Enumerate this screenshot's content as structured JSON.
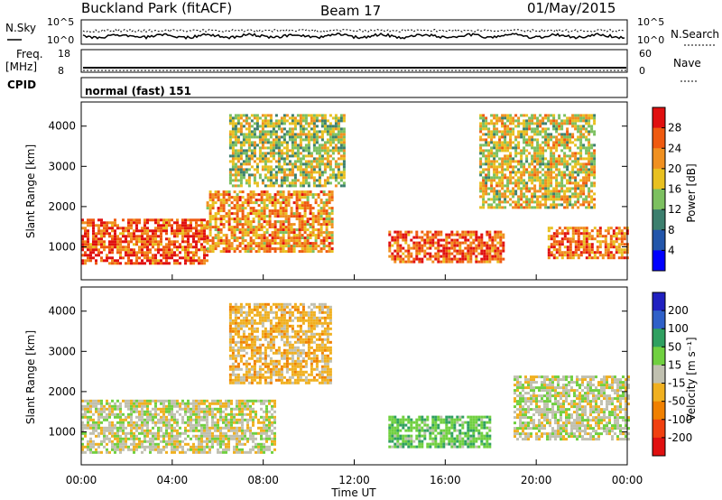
{
  "header": {
    "station": "Buckland Park (fitACF)",
    "beam": "Beam 17",
    "date": "01/May/2015"
  },
  "noise_panel": {
    "left_label": "N.Sky",
    "right_label": "N.Search",
    "left_ticks": [
      "10^5",
      "10^0"
    ],
    "right_ticks": [
      "10^5",
      "10^0"
    ]
  },
  "freq_panel": {
    "left_label_1": "Freq.",
    "left_label_2": "[MHz]",
    "left_ticks": [
      "18",
      "8"
    ],
    "right_label": "Nave",
    "right_ticks": [
      "60",
      "0"
    ]
  },
  "cpid_panel": {
    "label": "CPID",
    "program": "normal (fast) 151"
  },
  "power_panel": {
    "ylabel": "Slant Range [km]",
    "yticks": [
      "1000",
      "2000",
      "3000",
      "4000"
    ],
    "cbar_label": "Power [dB]",
    "cbar_ticks": [
      "4",
      "8",
      "12",
      "16",
      "20",
      "24",
      "28"
    ],
    "cbar_colors": [
      "#0000ff",
      "#2255aa",
      "#3c7f6e",
      "#7cc060",
      "#e8c020",
      "#f09020",
      "#ef5a10",
      "#e01010"
    ]
  },
  "velocity_panel": {
    "ylabel": "Slant Range [km]",
    "yticks": [
      "1000",
      "2000",
      "3000",
      "4000"
    ],
    "cbar_label": "Velocity [m s⁻¹]",
    "cbar_ticks": [
      "200",
      "100",
      "50",
      "15",
      "-15",
      "-50",
      "-100",
      "-200"
    ],
    "cbar_colors": [
      "#2020c0",
      "#2f60c8",
      "#2fa060",
      "#70d040",
      "#c0c0b0",
      "#f0b020",
      "#f08000",
      "#f04010",
      "#e01010"
    ]
  },
  "xaxis": {
    "label": "Time UT",
    "ticks": [
      "00:00",
      "04:00",
      "08:00",
      "12:00",
      "16:00",
      "20:00",
      "00:00"
    ]
  },
  "chart_data": {
    "type": "heatmap",
    "title": "Buckland Park (fitACF)",
    "beam": "Beam 17",
    "date": "01/May/2015",
    "xlabel": "Time UT",
    "ylabel": "Slant Range [km]",
    "xlim_hours": [
      0,
      24
    ],
    "ylim_km": [
      180,
      4600
    ],
    "xticks": [
      "00:00",
      "04:00",
      "08:00",
      "12:00",
      "16:00",
      "20:00",
      "00:00"
    ],
    "yticks": [
      1000,
      2000,
      3000,
      4000
    ],
    "panels": [
      {
        "name": "Power",
        "units": "dB",
        "colorbar_ticks": [
          4,
          8,
          12,
          16,
          20,
          24,
          28
        ],
        "echo_regions": [
          {
            "t_start": 0.0,
            "t_end": 5.5,
            "range_low_km": 600,
            "range_high_km": 1700,
            "power_db": 26
          },
          {
            "t_start": 5.5,
            "t_end": 11.0,
            "range_low_km": 900,
            "range_high_km": 2400,
            "power_db": 22
          },
          {
            "t_start": 13.5,
            "t_end": 18.5,
            "range_low_km": 600,
            "range_high_km": 1400,
            "power_db": 26
          },
          {
            "t_start": 20.5,
            "t_end": 24.0,
            "range_low_km": 700,
            "range_high_km": 1500,
            "power_db": 24
          },
          {
            "t_start": 6.5,
            "t_end": 11.5,
            "range_low_km": 2500,
            "range_high_km": 4300,
            "power_db": 16
          },
          {
            "t_start": 17.5,
            "t_end": 22.5,
            "range_low_km": 2000,
            "range_high_km": 4300,
            "power_db": 18
          }
        ]
      },
      {
        "name": "Velocity",
        "units": "m s^-1",
        "colorbar_ticks": [
          200,
          100,
          50,
          15,
          -15,
          -50,
          -100,
          -200
        ],
        "echo_regions": [
          {
            "t_start": 0.0,
            "t_end": 8.5,
            "range_low_km": 500,
            "range_high_km": 1800,
            "velocity_ms": 0
          },
          {
            "t_start": 13.5,
            "t_end": 18.0,
            "range_low_km": 600,
            "range_high_km": 1400,
            "velocity_ms": 40
          },
          {
            "t_start": 19.0,
            "t_end": 24.0,
            "range_low_km": 800,
            "range_high_km": 2400,
            "velocity_ms": 0
          },
          {
            "t_start": 6.5,
            "t_end": 11.0,
            "range_low_km": 2200,
            "range_high_km": 4200,
            "velocity_ms": -30
          }
        ]
      }
    ]
  }
}
